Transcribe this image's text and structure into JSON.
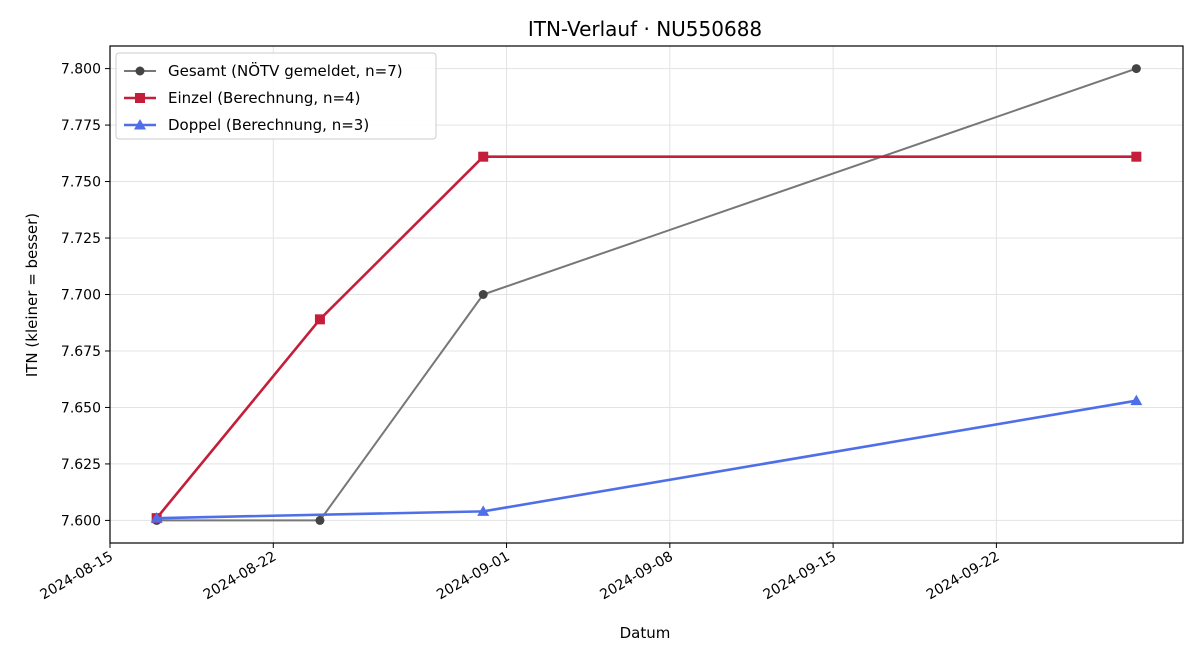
{
  "chart_data": {
    "type": "line",
    "title": "ITN-Verlauf · NU550688",
    "xlabel": "Datum",
    "ylabel": "ITN  (kleiner = besser)",
    "xlim": [
      "2024-08-15",
      "2024-09-30"
    ],
    "ylim": [
      7.59,
      7.81
    ],
    "x_ticks": [
      "2024-08-15",
      "2024-08-22",
      "2024-09-01",
      "2024-09-08",
      "2024-09-15",
      "2024-09-22"
    ],
    "y_ticks": [
      "7.600",
      "7.625",
      "7.650",
      "7.675",
      "7.700",
      "7.725",
      "7.750",
      "7.775",
      "7.800"
    ],
    "grid": true,
    "legend_position": "top-left",
    "series": [
      {
        "name": "Gesamt (NÖTV gemeldet, n=7)",
        "color": "#777777",
        "point_color": "#444444",
        "marker": "circle",
        "points": [
          {
            "x": "2024-08-17",
            "y": 7.6
          },
          {
            "x": "2024-08-24",
            "y": 7.6
          },
          {
            "x": "2024-08-31",
            "y": 7.7
          },
          {
            "x": "2024-09-28",
            "y": 7.8
          }
        ]
      },
      {
        "name": "Einzel (Berechnung, n=4)",
        "color": "#c41e3a",
        "point_color": "#c41e3a",
        "marker": "square",
        "points": [
          {
            "x": "2024-08-17",
            "y": 7.601
          },
          {
            "x": "2024-08-24",
            "y": 7.689
          },
          {
            "x": "2024-08-31",
            "y": 7.761
          },
          {
            "x": "2024-09-28",
            "y": 7.761
          }
        ]
      },
      {
        "name": "Doppel (Berechnung, n=3)",
        "color": "#4f6fe8",
        "point_color": "#4f6fe8",
        "marker": "triangle",
        "points": [
          {
            "x": "2024-08-17",
            "y": 7.601
          },
          {
            "x": "2024-08-31",
            "y": 7.604
          },
          {
            "x": "2024-09-28",
            "y": 7.653
          }
        ]
      }
    ]
  }
}
